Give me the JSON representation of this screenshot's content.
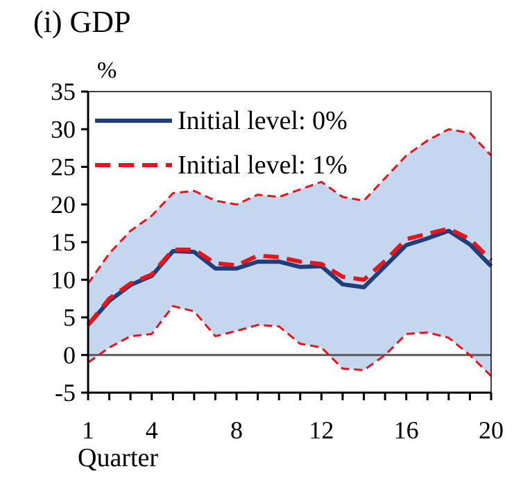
{
  "chart_data": {
    "type": "line",
    "title": "(i) GDP",
    "ylabel": "%",
    "xlabel": "Quarter",
    "ylim": [
      -5,
      35
    ],
    "xlim": [
      1,
      20
    ],
    "yticks": [
      "35",
      "30",
      "25",
      "20",
      "15",
      "10",
      "5",
      "0",
      "-5"
    ],
    "xticks": [
      "1",
      "4",
      "8",
      "12",
      "16",
      "20"
    ],
    "x": [
      1,
      2,
      3,
      4,
      5,
      6,
      7,
      8,
      9,
      10,
      11,
      12,
      13,
      14,
      15,
      16,
      17,
      18,
      19,
      20
    ],
    "band": {
      "upper": [
        9.5,
        13.5,
        16.5,
        18.5,
        21.5,
        21.8,
        20.5,
        20.0,
        21.3,
        21.0,
        22.0,
        23.0,
        21.0,
        20.5,
        23.5,
        26.5,
        28.5,
        30.0,
        29.5,
        26.5
      ],
      "lower": [
        -1.0,
        1.0,
        2.5,
        2.8,
        6.5,
        5.8,
        2.5,
        3.2,
        4.0,
        3.8,
        1.5,
        1.0,
        -1.8,
        -2.0,
        0.0,
        2.8,
        3.0,
        2.3,
        0.0,
        -2.8
      ]
    },
    "series": [
      {
        "name": "Initial level: 0%",
        "color": "#1f3f7a",
        "style": "solid",
        "values": [
          4.0,
          7.2,
          9.3,
          10.5,
          13.8,
          13.7,
          11.5,
          11.5,
          12.4,
          12.4,
          11.7,
          11.8,
          9.4,
          9.0,
          11.8,
          14.6,
          15.5,
          16.5,
          14.7,
          11.8
        ]
      },
      {
        "name": "Initial level: 1%",
        "color": "#e8141b",
        "style": "dashed",
        "values": [
          4.0,
          7.5,
          9.5,
          10.7,
          14.0,
          14.0,
          12.2,
          11.9,
          13.2,
          13.0,
          12.4,
          12.1,
          10.4,
          10.0,
          12.5,
          15.4,
          16.1,
          16.8,
          15.4,
          12.6
        ]
      },
      {
        "name": "",
        "color": "#e8141b",
        "style": "dashed-thin",
        "ref": "band.upper"
      },
      {
        "name": "",
        "color": "#e8141b",
        "style": "dashed-thin",
        "ref": "band.lower"
      }
    ],
    "band_color": "#c5d7ef",
    "zero_line_color": "#595959",
    "grid": false,
    "legend": "top-left"
  }
}
